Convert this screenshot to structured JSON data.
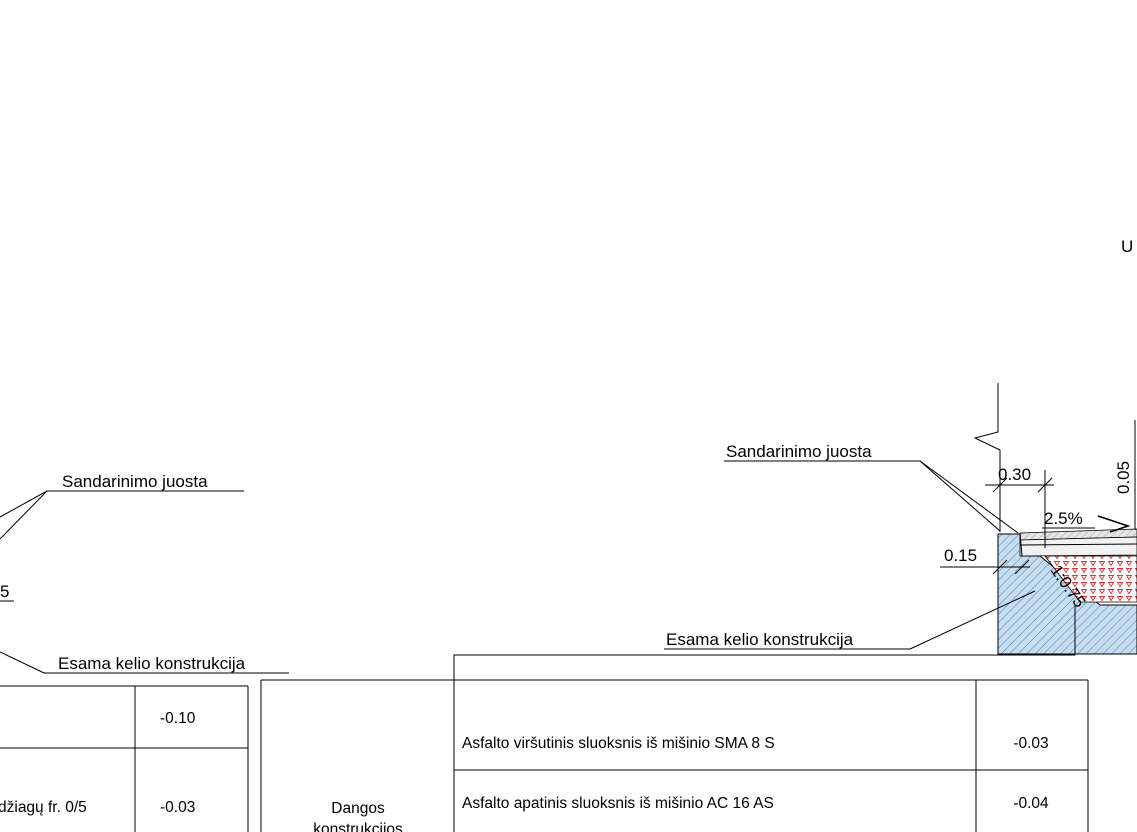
{
  "left_detail": {
    "label_seal": "Sandarinimo juosta",
    "label_partial": "5",
    "label_existing": "Esama kelio konstrukcija"
  },
  "right_detail": {
    "label_seal": "Sandarinimo juosta",
    "label_existing": "Esama kelio konstrukcija",
    "dim_030": "0.30",
    "dim_005": "0.05",
    "dim_015": "0.15",
    "slope": "2.5%",
    "ratio": "1:0.75",
    "clipped_title": "U"
  },
  "left_table": {
    "rows": [
      {
        "text": "",
        "value": "-0.10"
      },
      {
        "text": "džiagų fr. 0/5",
        "value": "-0.03"
      }
    ]
  },
  "right_table": {
    "group_label": "Dangos konstrukcijos",
    "rows": [
      {
        "text": "Asfalto viršutinis sluoksnis iš mišinio SMA 8 S",
        "value": "-0.03"
      },
      {
        "text": "Asfalto apatinis sluoksnis iš mišinio AC 16 AS",
        "value": "-0.04"
      }
    ]
  }
}
